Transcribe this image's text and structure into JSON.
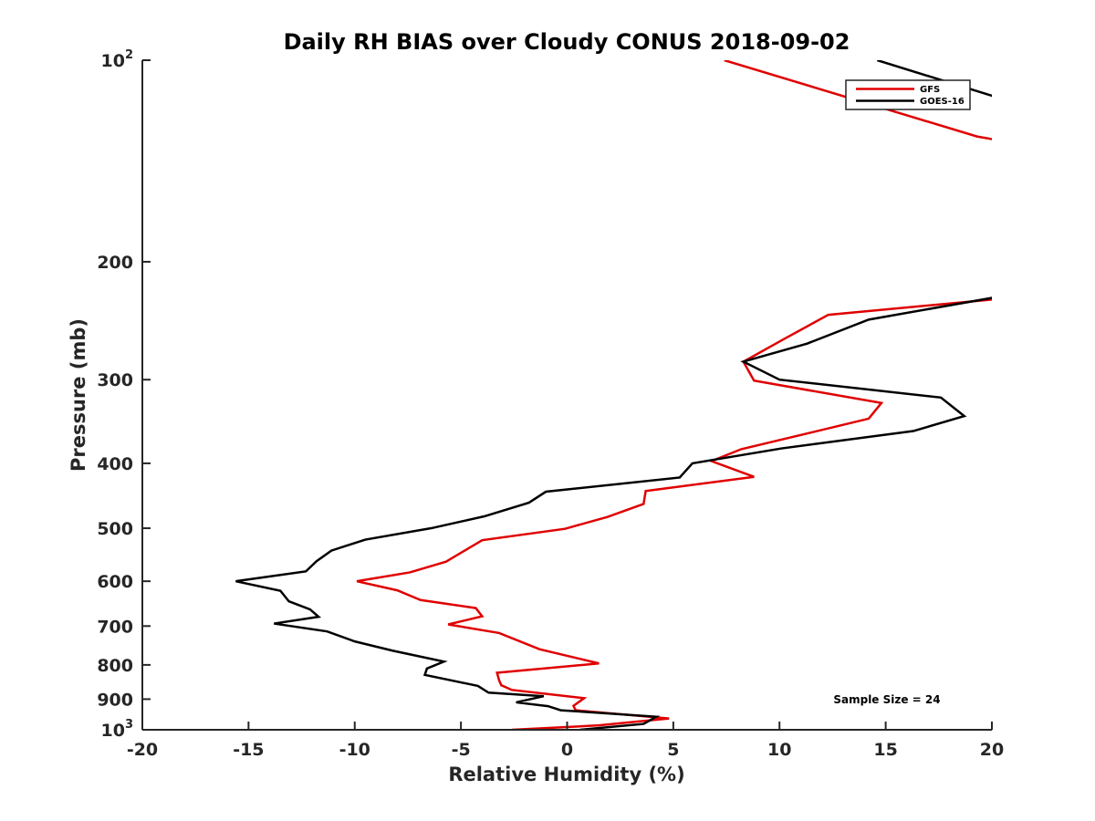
{
  "chart_data": {
    "type": "line",
    "title": "Daily RH BIAS over Cloudy CONUS 2018-09-02",
    "xlabel": "Relative Humidity (%)",
    "ylabel": "Pressure (mb)",
    "xlim": [
      -20,
      20
    ],
    "ylim": [
      100,
      1000
    ],
    "y_scale": "log",
    "y_reversed": true,
    "x_ticks": [
      {
        "value": -20,
        "label": "-20"
      },
      {
        "value": -15,
        "label": "-15"
      },
      {
        "value": -10,
        "label": "-10"
      },
      {
        "value": -5,
        "label": "-5"
      },
      {
        "value": 0,
        "label": "0"
      },
      {
        "value": 5,
        "label": "5"
      },
      {
        "value": 10,
        "label": "10"
      },
      {
        "value": 15,
        "label": "15"
      },
      {
        "value": 20,
        "label": "20"
      }
    ],
    "y_ticks": [
      {
        "value": 100,
        "label": "10",
        "sup": "2"
      },
      {
        "value": 200,
        "label": "200"
      },
      {
        "value": 300,
        "label": "300"
      },
      {
        "value": 400,
        "label": "400"
      },
      {
        "value": 500,
        "label": "500"
      },
      {
        "value": 600,
        "label": "600"
      },
      {
        "value": 700,
        "label": "700"
      },
      {
        "value": 800,
        "label": "800"
      },
      {
        "value": 900,
        "label": "900"
      },
      {
        "value": 1000,
        "label": "10",
        "sup": "3"
      }
    ],
    "grid": false,
    "legend_position": "top-right",
    "annotation": "Sample Size = 24",
    "series": [
      {
        "name": "GFS",
        "color": "#e00000",
        "points": [
          [
            7.4,
            100
          ],
          [
            19.3,
            130
          ],
          [
            20.5,
            132
          ],
          [
            20.5,
            227
          ],
          [
            12.3,
            240
          ],
          [
            10.2,
            261
          ],
          [
            8.3,
            282
          ],
          [
            8.8,
            301
          ],
          [
            14.8,
            325
          ],
          [
            14.2,
            343
          ],
          [
            11.3,
            361
          ],
          [
            8.2,
            381
          ],
          [
            6.8,
            397
          ],
          [
            8.8,
            419
          ],
          [
            3.7,
            440
          ],
          [
            3.6,
            460
          ],
          [
            1.9,
            481
          ],
          [
            -0.1,
            501
          ],
          [
            -4.0,
            521
          ],
          [
            -5.7,
            561
          ],
          [
            -7.4,
            582
          ],
          [
            -9.9,
            600
          ],
          [
            -8.0,
            619
          ],
          [
            -6.9,
            640
          ],
          [
            -4.3,
            658
          ],
          [
            -4.0,
            677
          ],
          [
            -5.6,
            696
          ],
          [
            -3.2,
            717
          ],
          [
            -1.3,
            758
          ],
          [
            1.5,
            796
          ],
          [
            -3.3,
            822
          ],
          [
            -3.2,
            844
          ],
          [
            -3.1,
            858
          ],
          [
            -2.6,
            872
          ],
          [
            0.8,
            897
          ],
          [
            0.3,
            921
          ],
          [
            0.4,
            935
          ],
          [
            4.8,
            962
          ],
          [
            1.5,
            985
          ],
          [
            -2.6,
            1000
          ]
        ]
      },
      {
        "name": "GOES-16",
        "color": "#000000",
        "points": [
          [
            14.6,
            100
          ],
          [
            20.0,
            113
          ],
          [
            20.5,
            115
          ],
          [
            20.5,
            225
          ],
          [
            14.2,
            244
          ],
          [
            11.3,
            265
          ],
          [
            8.3,
            282
          ],
          [
            10.0,
            300
          ],
          [
            17.6,
            319
          ],
          [
            18.7,
            340
          ],
          [
            16.3,
            358
          ],
          [
            10.1,
            380
          ],
          [
            5.9,
            400
          ],
          [
            5.3,
            420
          ],
          [
            -1.0,
            441
          ],
          [
            -1.8,
            458
          ],
          [
            -3.9,
            480
          ],
          [
            -6.4,
            500
          ],
          [
            -9.5,
            520
          ],
          [
            -11.1,
            540
          ],
          [
            -11.8,
            560
          ],
          [
            -12.3,
            580
          ],
          [
            -15.6,
            600
          ],
          [
            -13.5,
            620
          ],
          [
            -13.1,
            643
          ],
          [
            -12.1,
            661
          ],
          [
            -11.7,
            678
          ],
          [
            -13.8,
            694
          ],
          [
            -11.3,
            713
          ],
          [
            -10.0,
            738
          ],
          [
            -8.2,
            762
          ],
          [
            -5.8,
            791
          ],
          [
            -6.6,
            810
          ],
          [
            -6.7,
            828
          ],
          [
            -4.2,
            860
          ],
          [
            -3.7,
            880
          ],
          [
            -1.1,
            891
          ],
          [
            -2.4,
            910
          ],
          [
            -0.9,
            922
          ],
          [
            -0.3,
            935
          ],
          [
            4.2,
            956
          ],
          [
            3.6,
            980
          ],
          [
            0.6,
            1000
          ]
        ]
      }
    ]
  }
}
